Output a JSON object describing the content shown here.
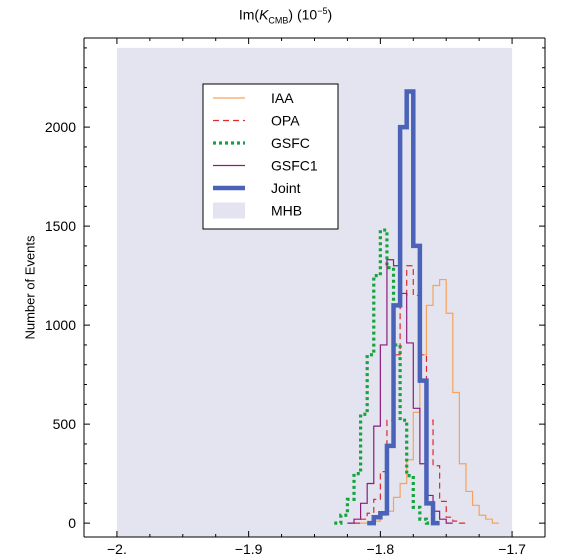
{
  "chart_data": {
    "type": "histogram",
    "title": {
      "prefix": "Im(",
      "italic": "K",
      "subscript": "CMB",
      "suffix": ") (10",
      "superscript": "−5",
      "end": ")"
    },
    "xlabel": "",
    "ylabel": "Number of Events",
    "xlim": [
      -2.025,
      -1.675
    ],
    "ylim": [
      -70,
      2450
    ],
    "x_ticks": [
      -2.0,
      -1.9,
      -1.8,
      -1.7
    ],
    "x_tick_labels": [
      "−2.",
      "−1.9",
      "−1.8",
      "−1.7"
    ],
    "y_ticks": [
      0,
      500,
      1000,
      1500,
      2000
    ],
    "y_tick_labels": [
      "0",
      "500",
      "1000",
      "1500",
      "2000"
    ],
    "shaded_region": {
      "label": "MHB",
      "x": [
        -2.0,
        -1.7
      ],
      "y": [
        -70,
        2400
      ],
      "color": "#e3e4ef"
    },
    "legend": {
      "position": "top-left",
      "entries": [
        "IAA",
        "OPA",
        "GSFC",
        "GSFC1",
        "Joint",
        "MHB"
      ]
    },
    "series": [
      {
        "name": "IAA",
        "color": "#f5a35c",
        "style": "solid",
        "width": 1.2,
        "bins": [
          [
            -1.825,
            0
          ],
          [
            -1.808,
            0
          ],
          [
            -1.805,
            10
          ],
          [
            -1.8,
            40
          ],
          [
            -1.795,
            60
          ],
          [
            -1.79,
            130
          ],
          [
            -1.785,
            200
          ],
          [
            -1.78,
            320
          ],
          [
            -1.775,
            560
          ],
          [
            -1.77,
            850
          ],
          [
            -1.765,
            1100
          ],
          [
            -1.76,
            1200
          ],
          [
            -1.755,
            1230
          ],
          [
            -1.75,
            1060
          ],
          [
            -1.745,
            660
          ],
          [
            -1.74,
            300
          ],
          [
            -1.735,
            160
          ],
          [
            -1.73,
            90
          ],
          [
            -1.725,
            40
          ],
          [
            -1.72,
            20
          ],
          [
            -1.715,
            0
          ]
        ]
      },
      {
        "name": "OPA",
        "color": "#e0282e",
        "style": "dashed",
        "width": 1.2,
        "bins": [
          [
            -1.82,
            0
          ],
          [
            -1.815,
            20
          ],
          [
            -1.81,
            50
          ],
          [
            -1.805,
            120
          ],
          [
            -1.8,
            260
          ],
          [
            -1.795,
            520
          ],
          [
            -1.79,
            850
          ],
          [
            -1.785,
            1150
          ],
          [
            -1.78,
            1300
          ],
          [
            -1.775,
            1150
          ],
          [
            -1.77,
            850
          ],
          [
            -1.765,
            520
          ],
          [
            -1.76,
            290
          ],
          [
            -1.755,
            110
          ],
          [
            -1.75,
            30
          ],
          [
            -1.745,
            10
          ],
          [
            -1.74,
            0
          ]
        ]
      },
      {
        "name": "GSFC",
        "color": "#14a33c",
        "style": "dotted",
        "width": 3.2,
        "bins": [
          [
            -1.835,
            0
          ],
          [
            -1.83,
            40
          ],
          [
            -1.825,
            120
          ],
          [
            -1.82,
            250
          ],
          [
            -1.815,
            550
          ],
          [
            -1.81,
            850
          ],
          [
            -1.805,
            1250
          ],
          [
            -1.8,
            1480
          ],
          [
            -1.795,
            1290
          ],
          [
            -1.79,
            900
          ],
          [
            -1.785,
            520
          ],
          [
            -1.78,
            240
          ],
          [
            -1.775,
            80
          ],
          [
            -1.77,
            20
          ],
          [
            -1.765,
            0
          ]
        ]
      },
      {
        "name": "GSFC1",
        "color": "#8a1c7c",
        "style": "solid",
        "width": 1.2,
        "bins": [
          [
            -1.825,
            0
          ],
          [
            -1.82,
            20
          ],
          [
            -1.815,
            100
          ],
          [
            -1.81,
            200
          ],
          [
            -1.805,
            490
          ],
          [
            -1.8,
            900
          ],
          [
            -1.795,
            1330
          ],
          [
            -1.79,
            1300
          ],
          [
            -1.785,
            1160
          ],
          [
            -1.78,
            910
          ],
          [
            -1.775,
            580
          ],
          [
            -1.77,
            300
          ],
          [
            -1.765,
            140
          ],
          [
            -1.76,
            60
          ],
          [
            -1.755,
            20
          ],
          [
            -1.75,
            0
          ]
        ]
      },
      {
        "name": "Joint",
        "color": "#4a62b8",
        "style": "solid",
        "width": 4.5,
        "bins": [
          [
            -1.81,
            0
          ],
          [
            -1.805,
            30
          ],
          [
            -1.8,
            50
          ],
          [
            -1.795,
            390
          ],
          [
            -1.79,
            1100
          ],
          [
            -1.785,
            2000
          ],
          [
            -1.78,
            2180
          ],
          [
            -1.775,
            1400
          ],
          [
            -1.77,
            720
          ],
          [
            -1.765,
            100
          ],
          [
            -1.76,
            0
          ]
        ]
      }
    ]
  }
}
